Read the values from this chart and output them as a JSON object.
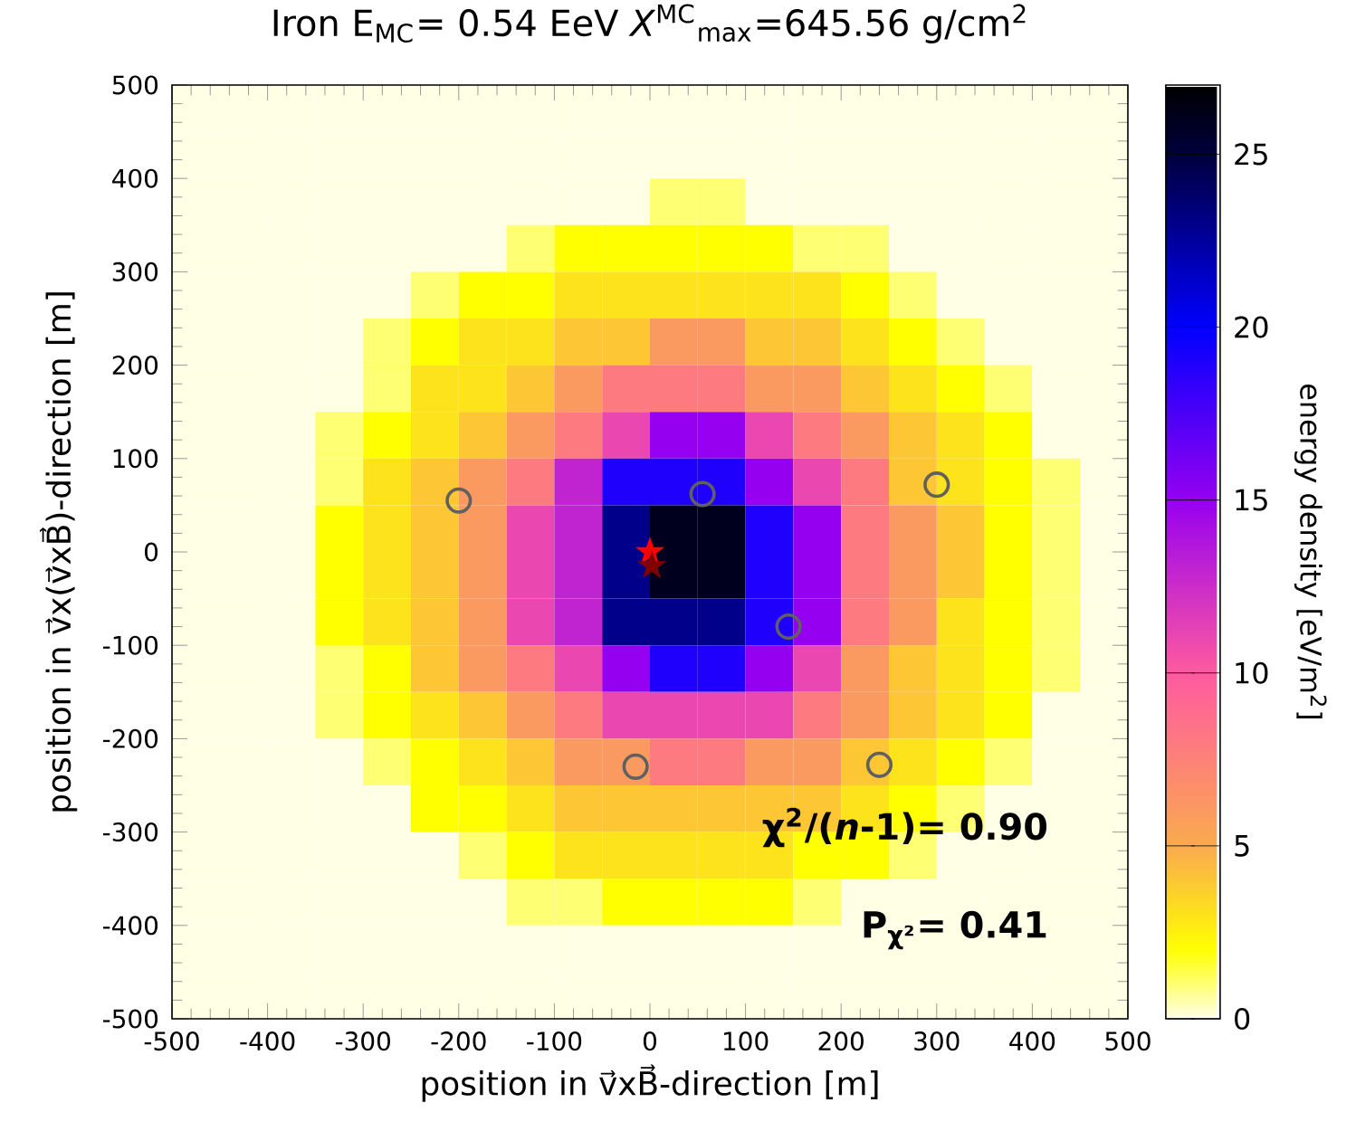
{
  "chart_data": {
    "type": "heatmap",
    "title": "Iron E$_{MC}$= 0.54 EeV *X*$^{MC}$$_{max}$=645.56 g/cm$^{2}$",
    "xlabel": "position in v⃗xB⃗-direction [m]",
    "ylabel": "position in v⃗x(v⃗xB⃗)-direction [m]",
    "clabel": "energy density [eV/m$^{2}$]",
    "xlim": [
      -500,
      500
    ],
    "ylim": [
      -500,
      500
    ],
    "xticks": [
      -500,
      -400,
      -300,
      -200,
      -100,
      0,
      100,
      200,
      300,
      400,
      500
    ],
    "yticks": [
      -500,
      -400,
      -300,
      -200,
      -100,
      0,
      100,
      200,
      300,
      400,
      500
    ],
    "clim": [
      0,
      27
    ],
    "cticks": [
      0,
      5,
      10,
      15,
      20,
      25
    ],
    "cells": [
      [
        0,
        0,
        0,
        0,
        0,
        0,
        0,
        0,
        0,
        0,
        0,
        0,
        0,
        0,
        0,
        0,
        0,
        0,
        0,
        0
      ],
      [
        0,
        0,
        0,
        0,
        0,
        0,
        0,
        0,
        0,
        0,
        0,
        0,
        0,
        0,
        0,
        0,
        0,
        0,
        0,
        0
      ],
      [
        0,
        0,
        0,
        0,
        0,
        0,
        0,
        0,
        0,
        0,
        1,
        1,
        0,
        0,
        0,
        0,
        0,
        0,
        0,
        0
      ],
      [
        0,
        0,
        0,
        0,
        0,
        0,
        0,
        1,
        2,
        2,
        2,
        2,
        2,
        1,
        1,
        0,
        0,
        0,
        0,
        0
      ],
      [
        0,
        0,
        0,
        0,
        0,
        1,
        2,
        2,
        3,
        3,
        3,
        3,
        3,
        3,
        2,
        1,
        0,
        0,
        0,
        0
      ],
      [
        0,
        0,
        0,
        0,
        1,
        2,
        3,
        3,
        4,
        4,
        6,
        6,
        4,
        4,
        3,
        2,
        1,
        0,
        0,
        0
      ],
      [
        0,
        0,
        0,
        0,
        1,
        3,
        3,
        4,
        6,
        8,
        8,
        8,
        6,
        6,
        4,
        3,
        2,
        1,
        0,
        0
      ],
      [
        0,
        0,
        0,
        1,
        2,
        3,
        4,
        6,
        8,
        11,
        15,
        15,
        11,
        8,
        6,
        4,
        3,
        2,
        0,
        0
      ],
      [
        0,
        0,
        0,
        1,
        3,
        4,
        6,
        8,
        13,
        19,
        19,
        19,
        15,
        11,
        8,
        4,
        3,
        2,
        1,
        0
      ],
      [
        0,
        0,
        0,
        2,
        3,
        4,
        6,
        11,
        13,
        23,
        26,
        26,
        19,
        15,
        8,
        6,
        4,
        2,
        1,
        0
      ],
      [
        0,
        0,
        0,
        2,
        3,
        4,
        6,
        11,
        13,
        23,
        26,
        26,
        19,
        15,
        8,
        6,
        4,
        2,
        1,
        0
      ],
      [
        0,
        0,
        0,
        2,
        3,
        4,
        6,
        11,
        13,
        23,
        23,
        23,
        19,
        15,
        8,
        6,
        3,
        2,
        1,
        0
      ],
      [
        0,
        0,
        0,
        1,
        2,
        4,
        6,
        8,
        11,
        15,
        19,
        19,
        15,
        11,
        6,
        4,
        3,
        2,
        1,
        0
      ],
      [
        0,
        0,
        0,
        1,
        2,
        3,
        4,
        6,
        8,
        11,
        11,
        11,
        11,
        8,
        6,
        4,
        3,
        2,
        0,
        0
      ],
      [
        0,
        0,
        0,
        0,
        1,
        2,
        3,
        4,
        6,
        6,
        8,
        8,
        6,
        6,
        4,
        3,
        2,
        1,
        0,
        0
      ],
      [
        0,
        0,
        0,
        0,
        0,
        2,
        2,
        3,
        4,
        4,
        4,
        4,
        4,
        4,
        3,
        2,
        1,
        0,
        0,
        0
      ],
      [
        0,
        0,
        0,
        0,
        0,
        0,
        1,
        2,
        3,
        3,
        3,
        3,
        3,
        2,
        2,
        1,
        0,
        0,
        0,
        0
      ],
      [
        0,
        0,
        0,
        0,
        0,
        0,
        0,
        1,
        1,
        2,
        2,
        2,
        2,
        1,
        0,
        0,
        0,
        0,
        0,
        0
      ],
      [
        0,
        0,
        0,
        0,
        0,
        0,
        0,
        0,
        0,
        0,
        0,
        0,
        0,
        0,
        0,
        0,
        0,
        0,
        0,
        0
      ],
      [
        0,
        0,
        0,
        0,
        0,
        0,
        0,
        0,
        0,
        0,
        0,
        0,
        0,
        0,
        0,
        0,
        0,
        0,
        0,
        0
      ]
    ],
    "series": [
      {
        "type": "scatter",
        "marker": "circle",
        "color": "#606060",
        "x": [
          -200,
          55,
          300,
          145,
          -15,
          240
        ],
        "values": [
          55,
          62,
          72,
          -80,
          -230,
          -228
        ]
      },
      {
        "type": "scatter",
        "marker": "star",
        "color": "#ff0000",
        "x": [
          0
        ],
        "values": [
          0
        ]
      },
      {
        "type": "scatter",
        "marker": "star",
        "color": "#800000",
        "x": [
          2
        ],
        "values": [
          -15
        ]
      }
    ],
    "annotations": [
      "χ$^{2}$/(*n*-1)= 0.90",
      "P$_{χ²}$= 0.41"
    ]
  }
}
